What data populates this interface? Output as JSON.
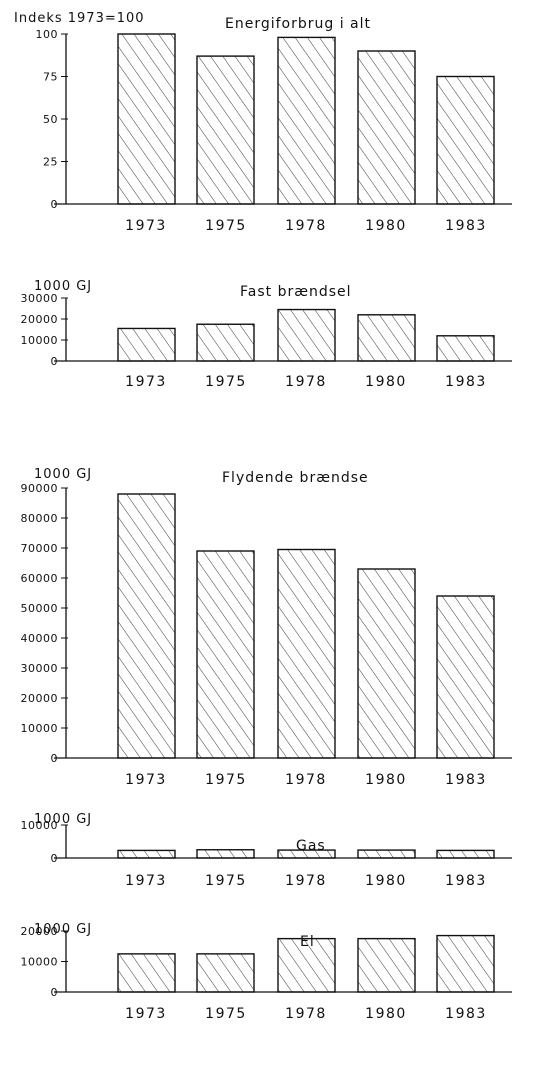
{
  "chart_data": [
    {
      "type": "bar",
      "title": "Energiforbrug i alt",
      "unit_label": "Indeks 1973=100",
      "categories": [
        "1973",
        "1975",
        "1978",
        "1980",
        "1983"
      ],
      "values": [
        100,
        87,
        98,
        90,
        75
      ],
      "yticks": [
        "0",
        "25",
        "50",
        "75",
        "100"
      ],
      "ylim": [
        0,
        100
      ]
    },
    {
      "type": "bar",
      "title": "Fast brændsel",
      "unit_label": "1000 GJ",
      "categories": [
        "1973",
        "1975",
        "1978",
        "1980",
        "1983"
      ],
      "values": [
        15500,
        17500,
        24500,
        22000,
        12000
      ],
      "yticks": [
        "0",
        "10000",
        "20000",
        "30000"
      ],
      "ylim": [
        0,
        30000
      ]
    },
    {
      "type": "bar",
      "title": "Flydende brændse",
      "unit_label": "1000 GJ",
      "categories": [
        "1973",
        "1975",
        "1978",
        "1980",
        "1983"
      ],
      "values": [
        88000,
        69000,
        69500,
        63000,
        54000
      ],
      "yticks": [
        "0",
        "10000",
        "20000",
        "30000",
        "40000",
        "50000",
        "60000",
        "70000",
        "80000",
        "90000"
      ],
      "ylim": [
        0,
        90000
      ]
    },
    {
      "type": "bar",
      "title": "Gas",
      "unit_label": "1000 GJ",
      "categories": [
        "1973",
        "1975",
        "1978",
        "1980",
        "1983"
      ],
      "values": [
        2300,
        2500,
        2400,
        2400,
        2300
      ],
      "yticks": [
        "0",
        "10000"
      ],
      "ylim": [
        0,
        10000
      ]
    },
    {
      "type": "bar",
      "title": "El",
      "unit_label": "1000 GJ",
      "categories": [
        "1973",
        "1975",
        "1978",
        "1980",
        "1983"
      ],
      "values": [
        12500,
        12500,
        17500,
        17500,
        18500
      ],
      "yticks": [
        "0",
        "10000",
        "20000"
      ],
      "ylim": [
        0,
        20000
      ]
    }
  ]
}
